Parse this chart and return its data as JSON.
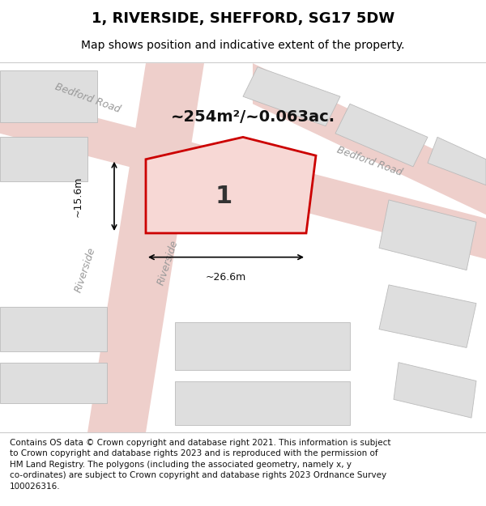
{
  "title": "1, RIVERSIDE, SHEFFORD, SG17 5DW",
  "subtitle": "Map shows position and indicative extent of the property.",
  "footer_text": "Contains OS data © Crown copyright and database right 2021. This information is subject\nto Crown copyright and database rights 2023 and is reproduced with the permission of\nHM Land Registry. The polygons (including the associated geometry, namely x, y\nco-ordinates) are subject to Crown copyright and database rights 2023 Ordnance Survey\n100026316.",
  "area_label": "~254m²/~0.063ac.",
  "dim_label_h": "~15.6m",
  "dim_label_w": "~26.6m",
  "plot_number": "1",
  "map_background": "#f5f4f0",
  "road_color_light": "#eecfcb",
  "building_fill": "#dedede",
  "building_outline": "#bbbbbb",
  "highlight_fill": "#f7d8d5",
  "highlight_outline": "#cc0000",
  "road_label_color": "#999999",
  "title_fontsize": 13,
  "subtitle_fontsize": 10,
  "footer_fontsize": 7.5
}
